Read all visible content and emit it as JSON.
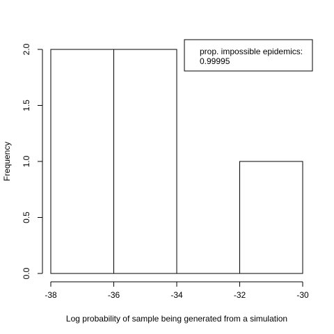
{
  "chart_data": {
    "type": "bar",
    "subtype": "histogram",
    "bins": [
      {
        "x0": -38,
        "x1": -36,
        "count": 2
      },
      {
        "x0": -36,
        "x1": -34,
        "count": 2
      },
      {
        "x0": -34,
        "x1": -32,
        "count": 0
      },
      {
        "x0": -32,
        "x1": -30,
        "count": 1
      }
    ],
    "xlabel": "Log probability of sample being generated from a simulation",
    "ylabel": "Frequency",
    "xlim": [
      -38,
      -30
    ],
    "ylim": [
      0,
      2
    ],
    "xticks": [
      -38,
      -36,
      -34,
      -32,
      -30
    ],
    "xtick_labels": [
      "-38",
      "-36",
      "-34",
      "-32",
      "-30"
    ],
    "yticks": [
      0,
      0.5,
      1,
      1.5,
      2
    ],
    "ytick_labels": [
      "0.0",
      "0.5",
      "1.0",
      "1.5",
      "2.0"
    ],
    "grid": false,
    "annotation": {
      "placement": "top-right",
      "line1": "prop. impossible epidemics:",
      "line2": "0.99995"
    }
  }
}
